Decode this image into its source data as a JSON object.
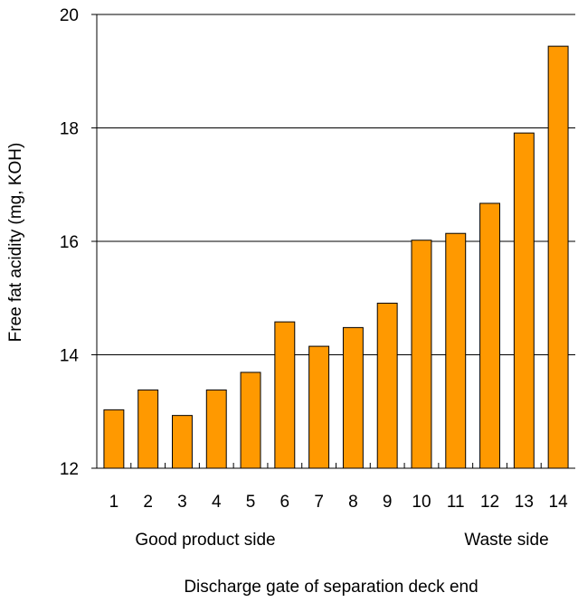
{
  "chart_data": {
    "type": "bar",
    "categories": [
      "1",
      "2",
      "3",
      "4",
      "5",
      "6",
      "7",
      "8",
      "9",
      "10",
      "11",
      "12",
      "13",
      "14"
    ],
    "values": [
      13.03,
      13.38,
      12.93,
      13.38,
      13.69,
      14.58,
      14.15,
      14.48,
      14.91,
      16.02,
      16.14,
      16.67,
      17.91,
      19.44
    ],
    "xlabel": "Discharge gate of separation deck end",
    "ylabel": "Free fat acidity (mg, KOH)",
    "ylim": [
      12,
      20
    ],
    "yticks": [
      "12",
      "14",
      "16",
      "18",
      "20"
    ],
    "gridlines": "horizontal",
    "legend": "none",
    "bar_color": "#FF9900",
    "side_labels": {
      "left": "Good product side",
      "right": "Waste side"
    }
  }
}
